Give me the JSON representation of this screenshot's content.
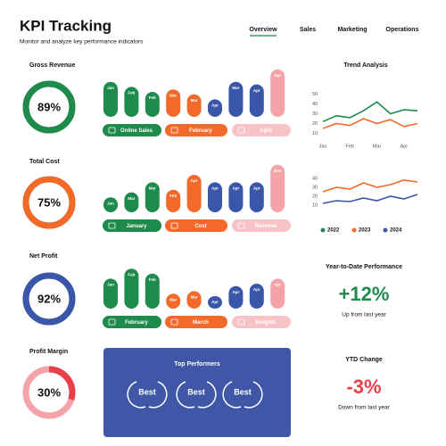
{
  "header": {
    "title": "KPI Tracking",
    "subtitle": "Monitor and analyze key performance indicators"
  },
  "nav": [
    "Overview",
    "Sales",
    "Marketing",
    "Operations"
  ],
  "chart_data": [
    {
      "type": "donut",
      "title": "Gross Revenue",
      "value": 89,
      "value_label": "89%",
      "color": "#1e8a4c",
      "track_color": "#1e8a4c"
    },
    {
      "type": "donut",
      "title": "Total Cost",
      "value": 75,
      "value_label": "75%",
      "color": "#f26a2a",
      "track_color": "#f26a2a"
    },
    {
      "type": "donut",
      "title": "Net Profit",
      "value": 92,
      "value_label": "92%",
      "color": "#3a56a8",
      "track_color": "#3a56a8"
    },
    {
      "type": "donut",
      "title": "Profit Margin",
      "value": 30,
      "value_label": "30%",
      "color": "#e8404a",
      "track_color": "#f4a3a8"
    },
    {
      "type": "bar",
      "categories": [
        "Jan",
        "Feb",
        "Feb",
        "Mar",
        "Mar",
        "Apr",
        "Mar",
        "Apr",
        "Apr"
      ],
      "values": [
        70,
        60,
        50,
        55,
        45,
        35,
        70,
        65,
        95
      ],
      "colors": [
        "#1e8a4c",
        "#1e8a4c",
        "#1e8a4c",
        "#f26a2a",
        "#f26a2a",
        "#3a56a8",
        "#3a56a8",
        "#3a56a8",
        "#f4a3a8"
      ],
      "buttons": [
        "Online Sales",
        "February",
        "April"
      ]
    },
    {
      "type": "bar",
      "categories": [
        "Jan",
        "Mar",
        "Mar",
        "Feb",
        "Apr",
        "Apr",
        "Apr",
        "Apr",
        "30%"
      ],
      "values": [
        30,
        40,
        60,
        45,
        75,
        60,
        60,
        60,
        95
      ],
      "colors": [
        "#1e8a4c",
        "#1e8a4c",
        "#1e8a4c",
        "#f26a2a",
        "#f26a2a",
        "#3a56a8",
        "#3a56a8",
        "#3a56a8",
        "#f4a3a8"
      ],
      "buttons": [
        "January",
        "Cost",
        "Revenue"
      ]
    },
    {
      "type": "bar",
      "categories": [
        "Jan",
        "Feb",
        "Feb",
        "Mar",
        "Mar",
        "Apr",
        "Apr",
        "Apr",
        "Apr"
      ],
      "values": [
        60,
        80,
        70,
        30,
        35,
        25,
        45,
        50,
        60
      ],
      "colors": [
        "#1e8a4c",
        "#1e8a4c",
        "#1e8a4c",
        "#f26a2a",
        "#f26a2a",
        "#3a56a8",
        "#3a56a8",
        "#3a56a8",
        "#f4a3a8"
      ],
      "buttons": [
        "February",
        "March",
        "Insights"
      ]
    },
    {
      "type": "line",
      "title": "Trend Analysis",
      "categories": [
        "Jan",
        null,
        "Feb",
        null,
        "Mar",
        null,
        "Apr",
        null
      ],
      "ylim": [
        5,
        55
      ],
      "yticks": [
        10,
        20,
        30,
        40,
        50
      ],
      "series": [
        {
          "color": "#1e8a4c",
          "values": [
            22,
            28,
            26,
            33,
            42,
            30,
            34,
            33
          ]
        },
        {
          "color": "#f26a2a",
          "values": [
            15,
            20,
            18,
            25,
            20,
            24,
            17,
            20
          ]
        }
      ]
    },
    {
      "type": "line",
      "ylim": [
        5,
        45
      ],
      "yticks": [
        10,
        20,
        30,
        40
      ],
      "series": [
        {
          "color": "#f26a2a",
          "values": [
            25,
            30,
            28,
            35,
            30,
            33,
            38,
            36
          ]
        },
        {
          "color": "#3a56a8",
          "values": [
            12,
            15,
            14,
            18,
            15,
            20,
            17,
            22
          ]
        }
      ],
      "legend": [
        {
          "name": "2022",
          "color": "#1e8a4c"
        },
        {
          "name": "2023",
          "color": "#f26a2a"
        },
        {
          "name": "2024",
          "color": "#3a56a8"
        }
      ]
    }
  ],
  "top_performers": {
    "title": "Top Performers",
    "badges": [
      "Best",
      "Best",
      "Best"
    ]
  },
  "ytd": {
    "title": "Year-to-Date Performance",
    "value": "+12%",
    "note": "Up from last year"
  },
  "ytd_change": {
    "title": "YTD Change",
    "value": "-3%",
    "note": "Down from last year"
  }
}
